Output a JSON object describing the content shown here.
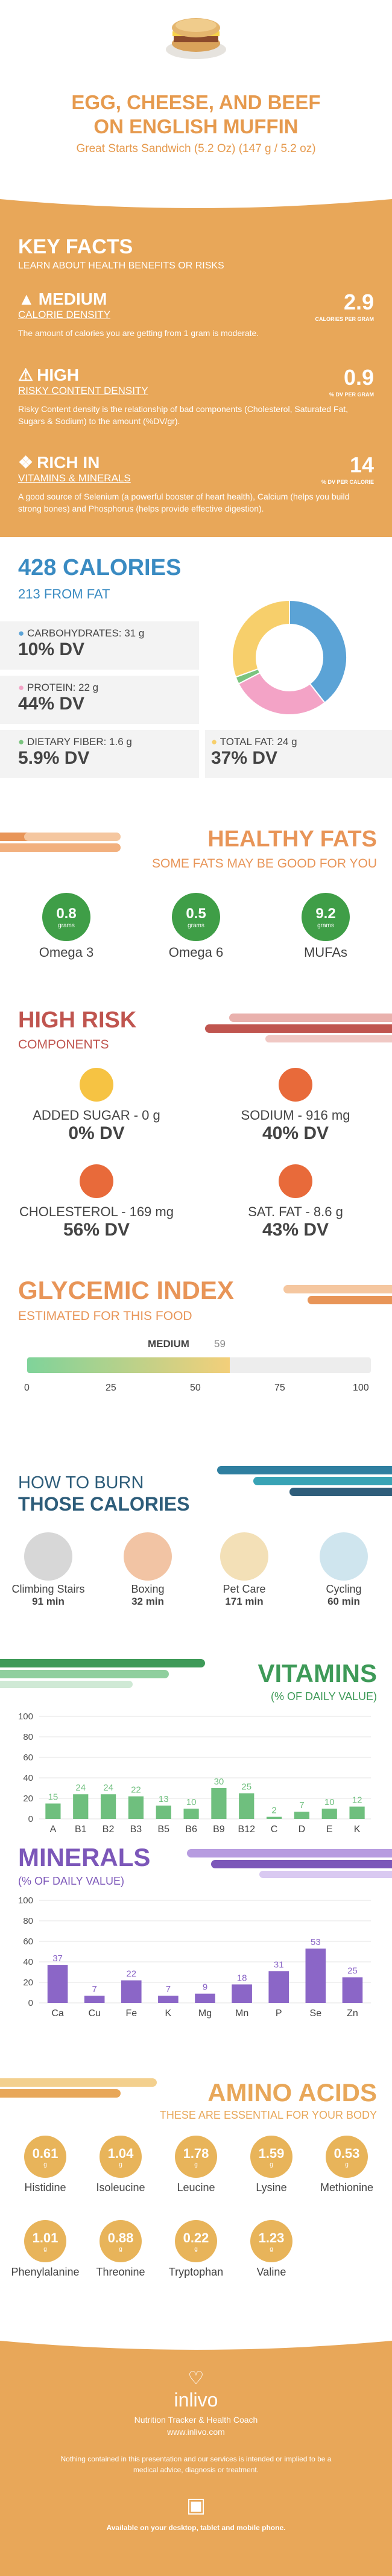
{
  "header": {
    "title_line1": "EGG, CHEESE, AND BEEF",
    "title_line2": "ON ENGLISH MUFFIN",
    "subtitle": "Great Starts Sandwich (5.2 Oz) (147 g / 5.2 oz)"
  },
  "key_facts": {
    "title": "KEY FACTS",
    "subtitle": "LEARN ABOUT HEALTH BENEFITS OR RISKS",
    "items": [
      {
        "level": "MEDIUM",
        "label": "CALORIE DENSITY",
        "value": "2.9",
        "unit": "CALORIES PER GRAM",
        "desc": "The amount of calories you are getting from 1 gram is moderate.",
        "icon": "flame-icon"
      },
      {
        "level": "HIGH",
        "label": "RISKY CONTENT DENSITY",
        "value": "0.9",
        "unit": "% DV PER GRAM",
        "desc": "Risky Content density is the relationship of bad components (Cholesterol, Saturated Fat, Sugars & Sodium) to the amount (%DV/gr).",
        "icon": "warning-icon"
      },
      {
        "level": "RICH IN",
        "label": "VITAMINS & MINERALS",
        "value": "14",
        "unit": "% DV PER CALORIE",
        "desc": "A good source of Selenium (a powerful booster of heart health), Calcium (helps you build strong bones) and Phosphorus (helps provide effective digestion).",
        "icon": "ribbon-icon"
      }
    ]
  },
  "calories": {
    "title": "428 CALORIES",
    "subtitle": "213 FROM FAT",
    "macros": [
      {
        "label": "CARBOHYDRATES: 31 g",
        "dv": "10% DV",
        "color": "#5ba3d6"
      },
      {
        "label": "PROTEIN: 22 g",
        "dv": "44% DV",
        "color": "#f3a3c6"
      },
      {
        "label": "DIETARY FIBER: 1.6 g",
        "dv": "5.9% DV",
        "color": "#7bc47f"
      },
      {
        "label": "TOTAL FAT: 24 g",
        "dv": "37% DV",
        "color": "#f7cf6b"
      }
    ]
  },
  "healthy_fats": {
    "title": "HEALTHY FATS",
    "subtitle": "SOME FATS MAY BE GOOD FOR YOU",
    "unit": "grams",
    "items": [
      {
        "value": "0.8",
        "label": "Omega 3"
      },
      {
        "value": "0.5",
        "label": "Omega 6"
      },
      {
        "value": "9.2",
        "label": "MUFAs"
      }
    ]
  },
  "high_risk": {
    "title": "HIGH RISK",
    "subtitle": "COMPONENTS",
    "items": [
      {
        "label": "ADDED SUGAR - 0 g",
        "dv": "0% DV",
        "face": "happy",
        "color": "#f6c343"
      },
      {
        "label": "SODIUM - 916 mg",
        "dv": "40% DV",
        "face": "sad",
        "color": "#e86a3a"
      },
      {
        "label": "CHOLESTEROL - 169 mg",
        "dv": "56% DV",
        "face": "sad",
        "color": "#e86a3a"
      },
      {
        "label": "SAT. FAT - 8.6 g",
        "dv": "43% DV",
        "face": "sad",
        "color": "#e86a3a"
      }
    ]
  },
  "glycemic": {
    "title": "GLYCEMIC INDEX",
    "subtitle": "ESTIMATED FOR THIS FOOD",
    "level": "MEDIUM",
    "value": "59",
    "value_num": 59,
    "ticks": [
      "0",
      "25",
      "50",
      "75",
      "100"
    ]
  },
  "burn": {
    "title1": "HOW TO BURN",
    "title2": "THOSE CALORIES",
    "items": [
      {
        "label": "Climbing Stairs",
        "value": "91 min"
      },
      {
        "label": "Boxing",
        "value": "32 min"
      },
      {
        "label": "Pet Care",
        "value": "171 min"
      },
      {
        "label": "Cycling",
        "value": "60 min"
      }
    ]
  },
  "vitamins": {
    "title": "VITAMINS",
    "subtitle": "(% OF DAILY VALUE)",
    "color": "#6fbf7e"
  },
  "minerals": {
    "title": "MINERALS",
    "subtitle": "(% OF DAILY VALUE)",
    "color": "#8b66c7"
  },
  "amino": {
    "title": "AMINO ACIDS",
    "subtitle": "THESE ARE ESSENTIAL FOR YOUR BODY",
    "unit": "g",
    "items": [
      {
        "value": "0.61",
        "label": "Histidine"
      },
      {
        "value": "1.04",
        "label": "Isoleucine"
      },
      {
        "value": "1.78",
        "label": "Leucine"
      },
      {
        "value": "1.59",
        "label": "Lysine"
      },
      {
        "value": "0.53",
        "label": "Methionine"
      },
      {
        "value": "1.01",
        "label": "Phenylalanine"
      },
      {
        "value": "0.88",
        "label": "Threonine"
      },
      {
        "value": "0.22",
        "label": "Tryptophan"
      },
      {
        "value": "1.23",
        "label": "Valine"
      }
    ]
  },
  "footer": {
    "brand": "inlivo",
    "tagline": "Nutrition Tracker & Health Coach",
    "url": "www.inlivo.com",
    "disclaimer": "Nothing contained in this presentation and our services is intended or implied to be a medical advice, diagnosis or treatment.",
    "available": "Available on your desktop, tablet and mobile phone."
  },
  "chart_data": [
    {
      "type": "bar",
      "title": "VITAMINS",
      "categories": [
        "A",
        "B1",
        "B2",
        "B3",
        "B5",
        "B6",
        "B9",
        "B12",
        "C",
        "D",
        "E",
        "K"
      ],
      "values": [
        15,
        24,
        24,
        22,
        13,
        10,
        30,
        25,
        2,
        7,
        10,
        12
      ],
      "ylim": [
        0,
        100
      ],
      "yticks": [
        0,
        20,
        40,
        60,
        80,
        100
      ]
    },
    {
      "type": "bar",
      "title": "MINERALS",
      "categories": [
        "Ca",
        "Cu",
        "Fe",
        "K",
        "Mg",
        "Mn",
        "P",
        "Se",
        "Zn"
      ],
      "values": [
        37,
        7,
        22,
        7,
        9,
        18,
        31,
        53,
        25
      ],
      "ylim": [
        0,
        100
      ],
      "yticks": [
        0,
        20,
        40,
        60,
        80,
        100
      ]
    },
    {
      "type": "pie",
      "title": "",
      "categories": [
        "CARBOHYDRATES",
        "PROTEIN",
        "DIETARY FIBER",
        "TOTAL FAT"
      ],
      "values": [
        31,
        22,
        1.6,
        24
      ],
      "colors": [
        "#5ba3d6",
        "#f3a3c6",
        "#7bc47f",
        "#f7cf6b"
      ]
    }
  ]
}
